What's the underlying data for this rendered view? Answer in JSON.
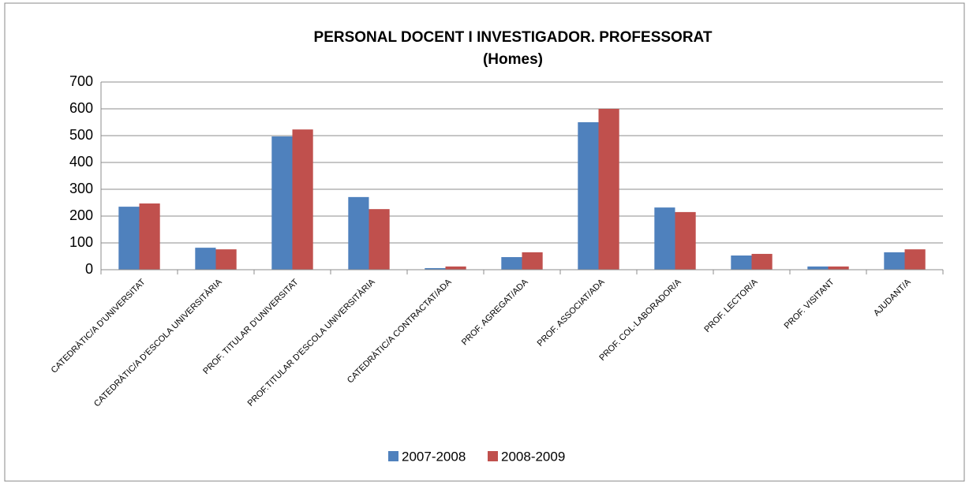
{
  "chart_data": {
    "type": "bar",
    "title": "PERSONAL DOCENT I INVESTIGADOR. PROFESSORAT",
    "subtitle": "(Homes)",
    "categories": [
      "CATEDRÀTIC/A D'UNIVERSITAT",
      "CATEDRÀTIC/A D'ESCOLA UNIVERSITÀRIA",
      "PROF. TITULAR D'UNIVERSITAT",
      "PROF.TITULAR D'ESCOLA UNIVERSITÀRIA",
      "CATEDRÀTIC/A CONTRACTAT/ADA",
      "PROF. AGREGAT/ADA",
      "PROF. ASSOCIAT/ADA",
      "PROF. COL·LABORADOR/A",
      "PROF. LECTOR/A",
      "PROF. VISITANT",
      "AJUDANT/A"
    ],
    "series": [
      {
        "name": "2007-2008",
        "color": "#4f81bd",
        "values": [
          235,
          82,
          497,
          271,
          6,
          47,
          550,
          232,
          53,
          12,
          65
        ]
      },
      {
        "name": "2008-2009",
        "color": "#c0504d",
        "values": [
          247,
          76,
          523,
          226,
          12,
          65,
          600,
          215,
          59,
          12,
          76
        ]
      }
    ],
    "ylim": [
      0,
      700
    ],
    "yticks": [
      0,
      100,
      200,
      300,
      400,
      500,
      600,
      700
    ],
    "grid": true
  }
}
